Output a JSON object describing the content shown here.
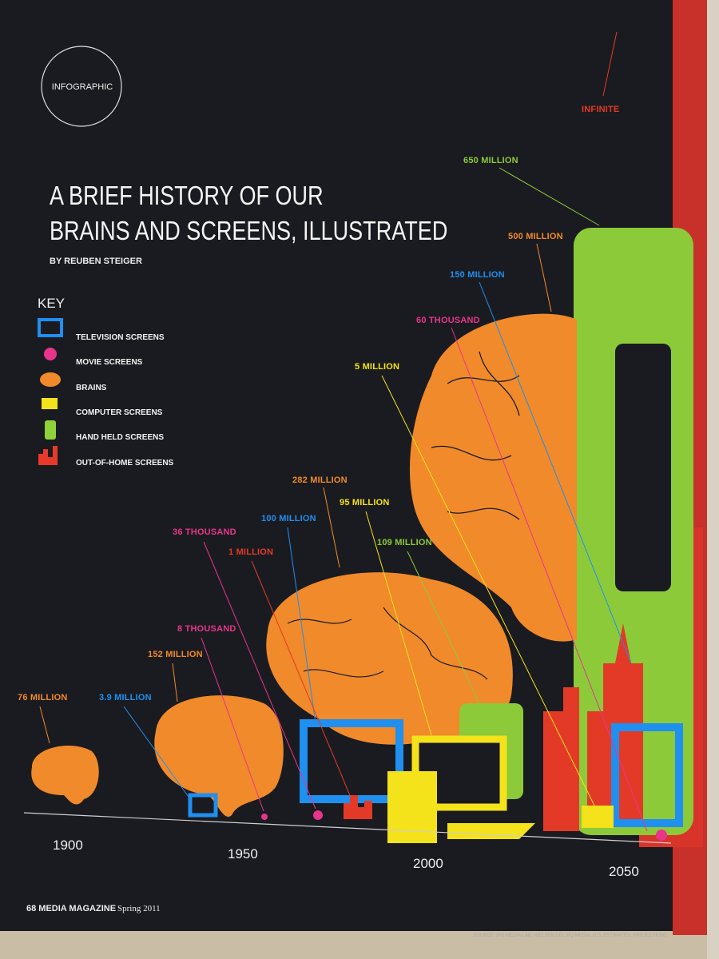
{
  "header": {
    "section": "INFOGRAPHIC",
    "title_lines": [
      "A BRIEF HISTORY OF OUR",
      "BRAINS AND SCREENS, ILLUSTRATED"
    ],
    "byline": "BY REUBEN STEIGER"
  },
  "key": {
    "title": "KEY",
    "items": [
      "TELEVISION SCREENS",
      "MOVIE SCREENS",
      "BRAINS",
      "COMPUTER SCREENS",
      "HAND HELD SCREENS",
      "OUT-OF-HOME SCREENS"
    ]
  },
  "labels": [
    "INFINITE",
    "650 MILLION",
    "500 MILLION",
    "150 MILLION",
    "60 THOUSAND",
    "5 MILLION",
    "282 MILLION",
    "95 MILLION",
    "100 MILLION",
    "109 MILLION",
    "36 THOUSAND",
    "1 MILLION",
    "8 THOUSAND",
    "152 MILLION",
    "76 MILLION",
    "3.9 MILLION"
  ],
  "years": [
    "1900",
    "1950",
    "2000",
    "2050"
  ],
  "footer": {
    "page": "68 MEDIA MAGAZINE",
    "issue": "Spring 2011",
    "source": "SOURCE: IPG MEDIA LAB, NIELSEN CO., PQ MEDIA, U.S. ESTIMATES, PROJECTIONS"
  }
}
